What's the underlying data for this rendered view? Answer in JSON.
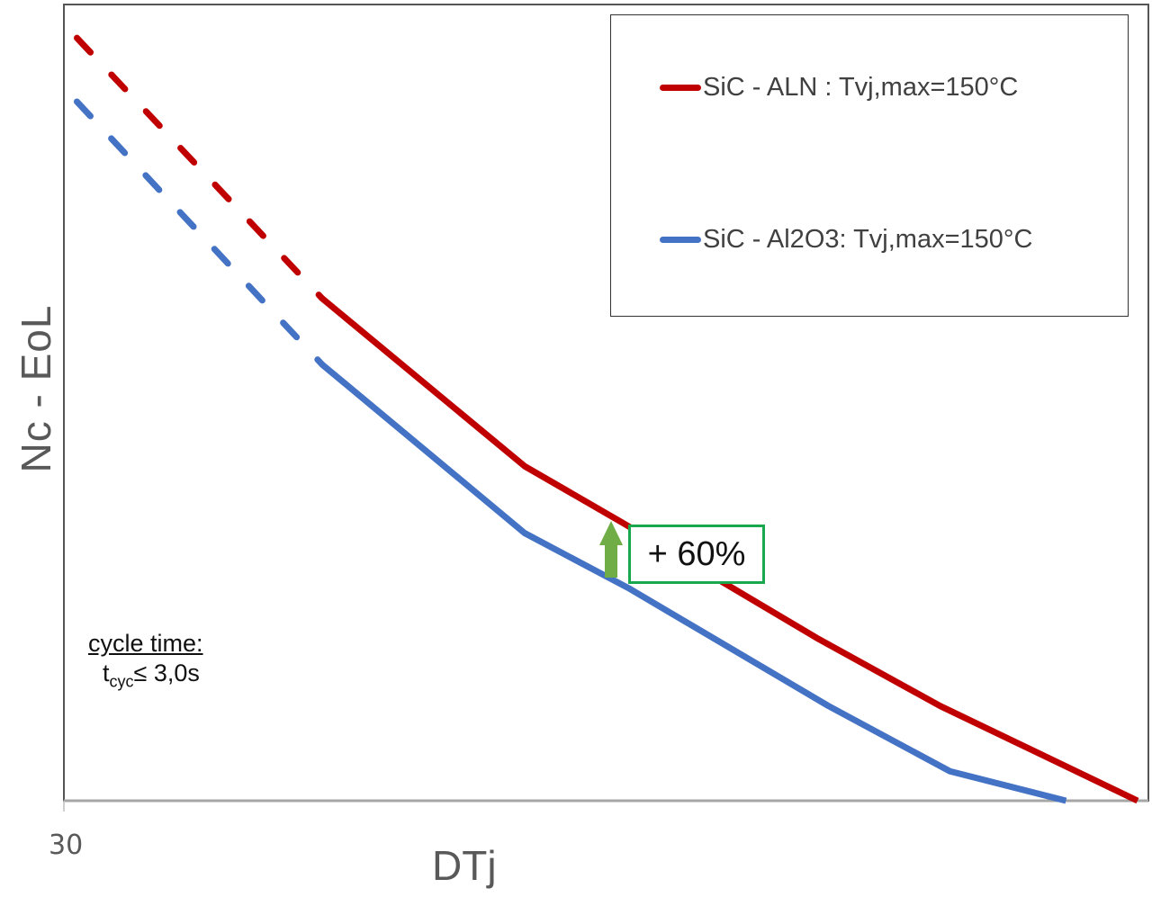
{
  "chart_data": {
    "type": "line",
    "title": "",
    "xlabel": "DTj",
    "ylabel": "Nc - EoL",
    "x_ticks": [
      "30"
    ],
    "xlim": [
      0,
      100
    ],
    "ylim": [
      0,
      100
    ],
    "scale_note": "relative units; axes have no numeric scale except x origin tick 30",
    "grid": false,
    "legend_position": "top-right",
    "dashed_until_x": 23.8,
    "series": [
      {
        "name": "SiC - ALN : Tvj,max=150°C",
        "color": "#c00000",
        "x": [
          1.2,
          23.8,
          42.5,
          51.4,
          69.6,
          80.8,
          99.0
        ],
        "y": [
          95.8,
          63.1,
          42.0,
          35.0,
          20.3,
          11.9,
          0
        ]
      },
      {
        "name": "SiC - Al2O3: Tvj,max=150°C",
        "color": "#4472c4",
        "x": [
          1.2,
          23.8,
          42.5,
          52.2,
          70.5,
          81.7,
          92.4
        ],
        "y": [
          87.8,
          54.8,
          33.6,
          26.6,
          11.9,
          3.7,
          0
        ]
      }
    ],
    "annotations": {
      "improvement_label": "+ 60%",
      "improvement_color": "#1aa84f",
      "arrow_color": "#70ad47",
      "arrow_x": 50.5,
      "note_title": "cycle time:",
      "note_value_prefix": "t",
      "note_value_sub": "cyc",
      "note_value_suffix": "≤ 3,0s"
    }
  }
}
